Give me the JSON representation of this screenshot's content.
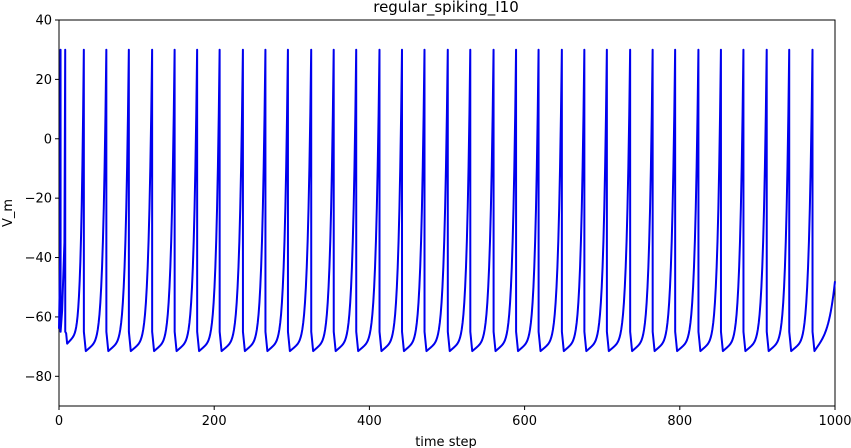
{
  "chart_data": {
    "type": "line",
    "title": "regular_spiking_I10",
    "xlabel": "time step",
    "ylabel": "V_m",
    "xlim": [
      0,
      1000
    ],
    "ylim": [
      -90,
      40
    ],
    "x_ticks": [
      0,
      200,
      400,
      600,
      800,
      1000
    ],
    "y_ticks": [
      -80,
      -60,
      -40,
      -20,
      0,
      20,
      40
    ],
    "x_tick_labels": [
      "0",
      "200",
      "400",
      "600",
      "800",
      "1000"
    ],
    "y_tick_labels": [
      "−80",
      "−60",
      "−40",
      "−20",
      "0",
      "20",
      "40"
    ],
    "grid": false,
    "line_color": "#0000ee",
    "series": [
      {
        "spike_peak": 30,
        "reset_potential": -65,
        "trough_first": -69,
        "trough_steady": -71.5,
        "spike_times": [
          2,
          8,
          32,
          61,
          90,
          120,
          149,
          178,
          207,
          237,
          266,
          295,
          325,
          354,
          383,
          413,
          442,
          471,
          501,
          530,
          560,
          589,
          618,
          648,
          677,
          706,
          736,
          765,
          794,
          824,
          853,
          882,
          912,
          941,
          971
        ],
        "final_value": -48,
        "x_end": 1000
      }
    ]
  }
}
